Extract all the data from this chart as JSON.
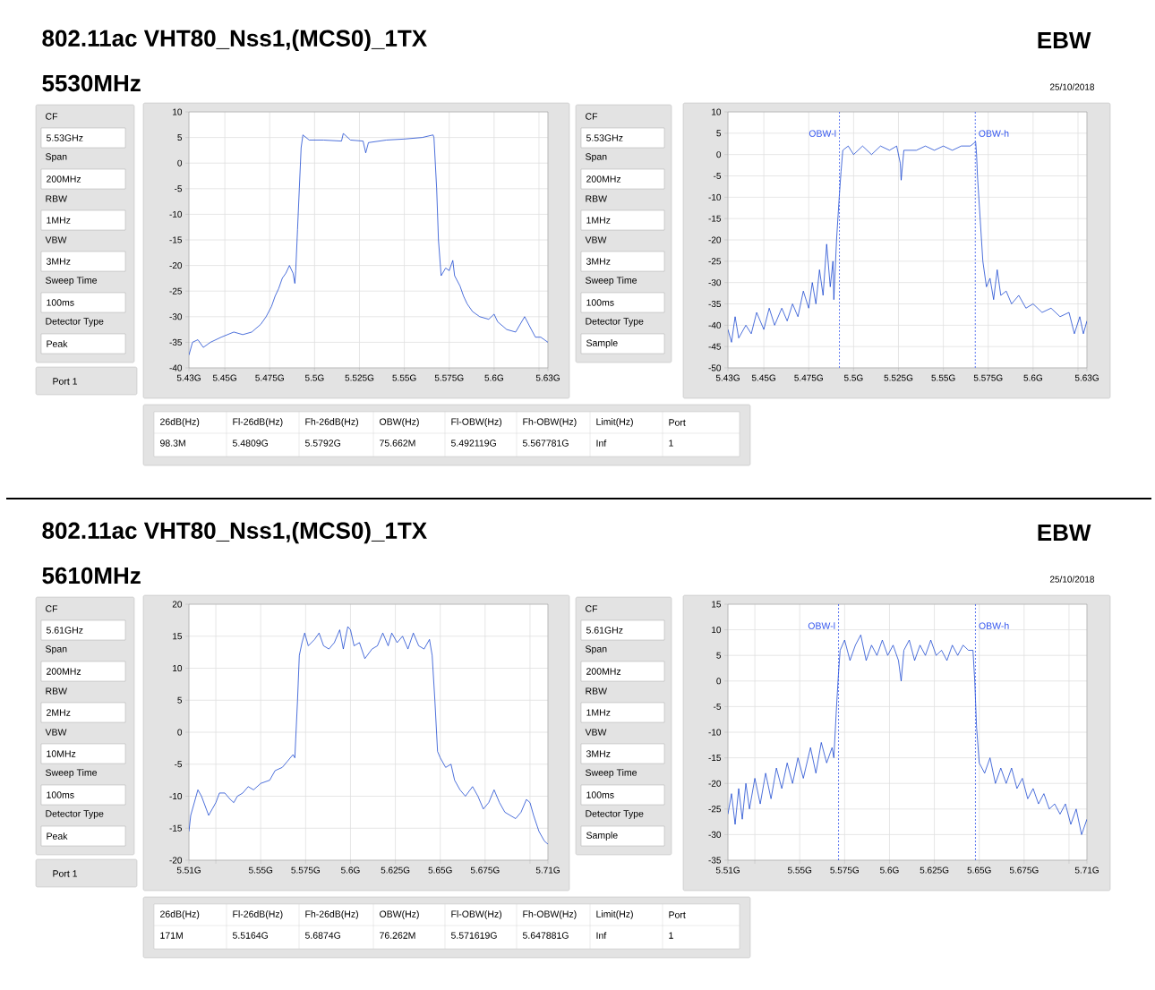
{
  "chart_data": [
    {
      "type": "other",
      "title": "802.11ac VHT80_Nss1,(MCS0)_1TX",
      "subtitle": "5530MHz",
      "annotations": [
        "EBW",
        "25/10/2018"
      ]
    },
    {
      "type": "other",
      "annotations": [
        "CF",
        "5.53GHz",
        "Span",
        "200MHz",
        "RBW",
        "1MHz",
        "VBW",
        "3MHz",
        "Sweep Time",
        "100ms",
        "Detector Type",
        "Peak",
        "Port 1"
      ]
    },
    {
      "type": "line",
      "color": "#0033cc",
      "grid": true,
      "xlim": [
        5.43,
        5.63
      ],
      "ylim": [
        -40,
        10
      ],
      "xticks": [
        {
          "value": 5.43,
          "label": "5.43G"
        },
        {
          "value": 5.45,
          "label": "5.45G"
        },
        {
          "value": 5.475,
          "label": "5.475G"
        },
        {
          "value": 5.5,
          "label": "5.5G"
        },
        {
          "value": 5.525,
          "label": "5.525G"
        },
        {
          "value": 5.55,
          "label": "5.55G"
        },
        {
          "value": 5.575,
          "label": "5.575G"
        },
        {
          "value": 5.6,
          "label": "5.6G"
        },
        {
          "value": 5.625,
          "label": null
        },
        {
          "value": 5.63,
          "label": "5.63G"
        }
      ],
      "yticks": [
        -40,
        -35,
        -30,
        -25,
        -20,
        -15,
        -10,
        -5,
        0,
        5,
        10
      ],
      "x": [
        5.43,
        5.432,
        5.435,
        5.438,
        5.442,
        5.448,
        5.455,
        5.46,
        5.465,
        5.47,
        5.473,
        5.476,
        5.478,
        5.48,
        5.482,
        5.484,
        5.486,
        5.488,
        5.489,
        5.4895,
        5.4905,
        5.4915,
        5.4925,
        5.4935,
        5.497,
        5.505,
        5.515,
        5.516,
        5.52,
        5.527,
        5.5285,
        5.53,
        5.54,
        5.55,
        5.56,
        5.566,
        5.5665,
        5.568,
        5.569,
        5.5705,
        5.573,
        5.575,
        5.577,
        5.578,
        5.581,
        5.583,
        5.585,
        5.588,
        5.592,
        5.597,
        5.6,
        5.602,
        5.607,
        5.612,
        5.617,
        5.62,
        5.623,
        5.626,
        5.63
      ],
      "values": [
        -37.5,
        -35,
        -34.5,
        -36,
        -35,
        -34,
        -33,
        -33.5,
        -33,
        -31.5,
        -30,
        -28,
        -26,
        -24.5,
        -22.5,
        -21.5,
        -20,
        -21.5,
        -23.5,
        -21,
        -13,
        -5,
        3,
        5.5,
        4.5,
        4.5,
        4.3,
        5.8,
        4.5,
        4.3,
        2,
        4,
        4.5,
        4.7,
        5,
        5.5,
        5,
        -5,
        -15,
        -22,
        -20.5,
        -21,
        -19,
        -22,
        -24,
        -26,
        -27.5,
        -29,
        -30,
        -30.5,
        -29.5,
        -31,
        -32.5,
        -33,
        -30,
        -32,
        -34,
        -34,
        -35
      ]
    },
    {
      "type": "other",
      "annotations": [
        "CF",
        "5.53GHz",
        "Span",
        "200MHz",
        "RBW",
        "1MHz",
        "VBW",
        "3MHz",
        "Sweep Time",
        "100ms",
        "Detector Type",
        "Sample"
      ]
    },
    {
      "type": "line",
      "color": "#0033cc",
      "grid": true,
      "xlim": [
        5.43,
        5.63
      ],
      "ylim": [
        -50,
        10
      ],
      "xticks": [
        {
          "value": 5.43,
          "label": "5.43G"
        },
        {
          "value": 5.45,
          "label": "5.45G"
        },
        {
          "value": 5.475,
          "label": "5.475G"
        },
        {
          "value": 5.5,
          "label": "5.5G"
        },
        {
          "value": 5.525,
          "label": "5.525G"
        },
        {
          "value": 5.55,
          "label": "5.55G"
        },
        {
          "value": 5.575,
          "label": "5.575G"
        },
        {
          "value": 5.6,
          "label": "5.6G"
        },
        {
          "value": 5.625,
          "label": null
        },
        {
          "value": 5.63,
          "label": "5.63G"
        }
      ],
      "yticks": [
        -50,
        -45,
        -40,
        -35,
        -30,
        -25,
        -20,
        -15,
        -10,
        -5,
        0,
        5,
        10
      ],
      "ref_lines": [
        {
          "axis": "x",
          "value": 5.492119,
          "label": "OBW-l",
          "color": "#3355ee",
          "line_style": "dashed"
        },
        {
          "axis": "x",
          "value": 5.567781,
          "label": "OBW-h",
          "color": "#3355ee",
          "line_style": "dashed"
        }
      ],
      "x": [
        5.43,
        5.432,
        5.434,
        5.436,
        5.44,
        5.443,
        5.446,
        5.45,
        5.453,
        5.456,
        5.46,
        5.463,
        5.466,
        5.469,
        5.472,
        5.475,
        5.477,
        5.479,
        5.481,
        5.483,
        5.485,
        5.487,
        5.4885,
        5.489,
        5.4905,
        5.492,
        5.493,
        5.494,
        5.497,
        5.5,
        5.505,
        5.51,
        5.515,
        5.52,
        5.524,
        5.526,
        5.5265,
        5.528,
        5.535,
        5.54,
        5.545,
        5.55,
        5.555,
        5.56,
        5.565,
        5.568,
        5.5685,
        5.569,
        5.5705,
        5.572,
        5.574,
        5.576,
        5.578,
        5.58,
        5.582,
        5.585,
        5.588,
        5.592,
        5.596,
        5.6,
        5.605,
        5.61,
        5.615,
        5.62,
        5.623,
        5.626,
        5.628,
        5.63
      ],
      "values": [
        -41,
        -44,
        -38,
        -43,
        -40,
        -42,
        -37,
        -41,
        -36,
        -40,
        -36,
        -39,
        -35,
        -38,
        -32,
        -36,
        -30,
        -35,
        -27,
        -33,
        -21,
        -31,
        -25,
        -34,
        -20,
        -10,
        -4,
        1,
        2,
        0,
        2,
        0,
        2,
        1,
        2,
        -2,
        -6,
        1,
        1,
        2,
        1,
        2,
        1,
        2,
        2,
        3,
        0,
        -5,
        -15,
        -25,
        -31,
        -29,
        -34,
        -27,
        -33,
        -32,
        -35,
        -33,
        -36,
        -35,
        -37,
        -36,
        -38,
        -37,
        -42,
        -38,
        -42,
        -39
      ]
    },
    {
      "type": "other",
      "annotations": [
        "26dB(Hz)",
        "Fl-26dB(Hz)",
        "Fh-26dB(Hz)",
        "OBW(Hz)",
        "Fl-OBW(Hz)",
        "Fh-OBW(Hz)",
        "Limit(Hz)",
        "Port",
        "98.3M",
        "5.4809G",
        "5.5792G",
        "75.662M",
        "5.492119G",
        "5.567781G",
        "Inf",
        "1"
      ]
    },
    {
      "type": "other",
      "title": "802.11ac VHT80_Nss1,(MCS0)_1TX",
      "subtitle": "5610MHz",
      "annotations": [
        "EBW",
        "25/10/2018"
      ]
    },
    {
      "type": "other",
      "annotations": [
        "CF",
        "5.61GHz",
        "Span",
        "200MHz",
        "RBW",
        "2MHz",
        "VBW",
        "10MHz",
        "Sweep Time",
        "100ms",
        "Detector Type",
        "Peak",
        "Port 1"
      ]
    },
    {
      "type": "line",
      "color": "#0033cc",
      "grid": true,
      "xlim": [
        5.51,
        5.71
      ],
      "ylim": [
        -20,
        20
      ],
      "xticks": [
        {
          "value": 5.51,
          "label": "5.51G"
        },
        {
          "value": 5.525,
          "label": null
        },
        {
          "value": 5.55,
          "label": "5.55G"
        },
        {
          "value": 5.575,
          "label": "5.575G"
        },
        {
          "value": 5.6,
          "label": "5.6G"
        },
        {
          "value": 5.625,
          "label": "5.625G"
        },
        {
          "value": 5.65,
          "label": "5.65G"
        },
        {
          "value": 5.675,
          "label": "5.675G"
        },
        {
          "value": 5.7,
          "label": null
        },
        {
          "value": 5.71,
          "label": "5.71G"
        }
      ],
      "yticks": [
        -20,
        -15,
        -10,
        -5,
        0,
        5,
        10,
        15,
        20
      ],
      "x": [
        5.51,
        5.511,
        5.513,
        5.515,
        5.517,
        5.519,
        5.521,
        5.523,
        5.525,
        5.527,
        5.53,
        5.533,
        5.535,
        5.537,
        5.54,
        5.543,
        5.546,
        5.55,
        5.555,
        5.558,
        5.562,
        5.565,
        5.568,
        5.569,
        5.5695,
        5.5705,
        5.5715,
        5.573,
        5.5745,
        5.5765,
        5.58,
        5.5825,
        5.585,
        5.588,
        5.591,
        5.594,
        5.596,
        5.5985,
        5.6,
        5.602,
        5.605,
        5.608,
        5.612,
        5.615,
        5.618,
        5.621,
        5.623,
        5.626,
        5.629,
        5.632,
        5.635,
        5.638,
        5.641,
        5.644,
        5.6455,
        5.647,
        5.6485,
        5.65,
        5.653,
        5.656,
        5.658,
        5.661,
        5.664,
        5.668,
        5.671,
        5.674,
        5.677,
        5.68,
        5.683,
        5.686,
        5.689,
        5.692,
        5.695,
        5.698,
        5.7,
        5.702,
        5.705,
        5.708,
        5.71
      ],
      "values": [
        -15.5,
        -13,
        -11,
        -9,
        -10,
        -11.5,
        -13,
        -12,
        -11,
        -9.5,
        -9.5,
        -10.5,
        -11,
        -10,
        -9.5,
        -8.5,
        -9,
        -8,
        -7.5,
        -6,
        -5.5,
        -4.5,
        -3.5,
        -4,
        -1,
        5,
        12,
        14,
        15.5,
        13.5,
        14.5,
        15.5,
        13.5,
        13,
        14,
        16,
        13,
        16.5,
        16,
        13.5,
        14,
        11.5,
        13,
        13.5,
        15.5,
        13.5,
        15.5,
        14,
        15,
        13,
        15.5,
        13.5,
        13,
        14.5,
        12,
        5,
        -3,
        -4,
        -5.5,
        -5,
        -7.5,
        -9,
        -10,
        -8.5,
        -10,
        -12,
        -11,
        -9,
        -11,
        -12.5,
        -13,
        -13.5,
        -12.5,
        -10.5,
        -11,
        -13,
        -15.5,
        -17,
        -17.5
      ]
    },
    {
      "type": "other",
      "annotations": [
        "CF",
        "5.61GHz",
        "Span",
        "200MHz",
        "RBW",
        "1MHz",
        "VBW",
        "3MHz",
        "Sweep Time",
        "100ms",
        "Detector Type",
        "Sample"
      ]
    },
    {
      "type": "line",
      "color": "#0033cc",
      "grid": true,
      "xlim": [
        5.51,
        5.71
      ],
      "ylim": [
        -35,
        15
      ],
      "xticks": [
        {
          "value": 5.51,
          "label": "5.51G"
        },
        {
          "value": 5.525,
          "label": null
        },
        {
          "value": 5.55,
          "label": "5.55G"
        },
        {
          "value": 5.575,
          "label": "5.575G"
        },
        {
          "value": 5.6,
          "label": "5.6G"
        },
        {
          "value": 5.625,
          "label": "5.625G"
        },
        {
          "value": 5.65,
          "label": "5.65G"
        },
        {
          "value": 5.675,
          "label": "5.675G"
        },
        {
          "value": 5.7,
          "label": null
        },
        {
          "value": 5.71,
          "label": "5.71G"
        }
      ],
      "yticks": [
        -35,
        -30,
        -25,
        -20,
        -15,
        -10,
        -5,
        0,
        5,
        10,
        15
      ],
      "ref_lines": [
        {
          "axis": "x",
          "value": 5.571619,
          "label": "OBW-l",
          "color": "#3355ee",
          "line_style": "dashed"
        },
        {
          "axis": "x",
          "value": 5.647881,
          "label": "OBW-h",
          "color": "#3355ee",
          "line_style": "dashed"
        }
      ],
      "x": [
        5.51,
        5.512,
        5.514,
        5.516,
        5.518,
        5.52,
        5.522,
        5.525,
        5.528,
        5.531,
        5.534,
        5.537,
        5.54,
        5.543,
        5.546,
        5.549,
        5.552,
        5.556,
        5.559,
        5.562,
        5.565,
        5.568,
        5.569,
        5.5705,
        5.5715,
        5.5725,
        5.575,
        5.578,
        5.581,
        5.584,
        5.587,
        5.59,
        5.593,
        5.596,
        5.599,
        5.602,
        5.605,
        5.6065,
        5.608,
        5.611,
        5.614,
        5.617,
        5.62,
        5.623,
        5.626,
        5.629,
        5.632,
        5.635,
        5.638,
        5.641,
        5.644,
        5.6465,
        5.6475,
        5.6485,
        5.65,
        5.653,
        5.656,
        5.659,
        5.662,
        5.665,
        5.668,
        5.671,
        5.674,
        5.677,
        5.68,
        5.683,
        5.686,
        5.689,
        5.692,
        5.695,
        5.698,
        5.701,
        5.704,
        5.707,
        5.71
      ],
      "values": [
        -26,
        -22,
        -28,
        -21,
        -27,
        -20,
        -25,
        -19,
        -24,
        -18,
        -23,
        -17,
        -21,
        -16,
        -20,
        -15,
        -19,
        -13,
        -18,
        -12,
        -16,
        -13,
        -15,
        -5,
        1,
        6,
        8,
        4,
        7,
        9,
        4,
        7,
        5,
        8,
        5,
        7,
        4,
        0,
        6,
        8,
        4,
        7,
        5,
        8,
        5,
        6,
        4,
        7,
        5,
        7,
        6,
        6,
        0,
        -9,
        -16,
        -18,
        -15,
        -20,
        -17,
        -20,
        -17,
        -21,
        -19,
        -23,
        -21,
        -24,
        -22,
        -25,
        -24,
        -26,
        -24,
        -28,
        -25,
        -30,
        -27
      ]
    },
    {
      "type": "other",
      "annotations": [
        "26dB(Hz)",
        "Fl-26dB(Hz)",
        "Fh-26dB(Hz)",
        "OBW(Hz)",
        "Fl-OBW(Hz)",
        "Fh-OBW(Hz)",
        "Limit(Hz)",
        "Port",
        "171M",
        "5.5164G",
        "5.6874G",
        "76.262M",
        "5.571619G",
        "5.647881G",
        "Inf",
        "1"
      ]
    }
  ]
}
